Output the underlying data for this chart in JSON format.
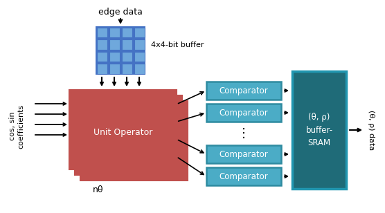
{
  "bg_color": "#ffffff",
  "buffer_grid_color": "#4472c4",
  "buffer_grid_inner": "#6fa8dc",
  "unit_op_color": "#c0504d",
  "unit_op_edge": "#c0504d",
  "comparator_color": "#4bacc6",
  "comparator_edge": "#2e8ba0",
  "sram_color": "#1f6b78",
  "sram_edge": "#2196b0",
  "arrow_color": "#000000",
  "text_color": "#000000",
  "edge_data_text": "edge data",
  "buffer_label": "4x4-bit buffer",
  "unit_op_label": "Unit Operator",
  "n_theta_label": "nθ",
  "cos_sin_line1": "cos, sin",
  "cos_sin_line2": "coefficients",
  "comparator_label": "Comparator",
  "sram_label": "(θ, ρ)\nbuffer-\nSRAM",
  "output_label": "(θ, ρ) data"
}
